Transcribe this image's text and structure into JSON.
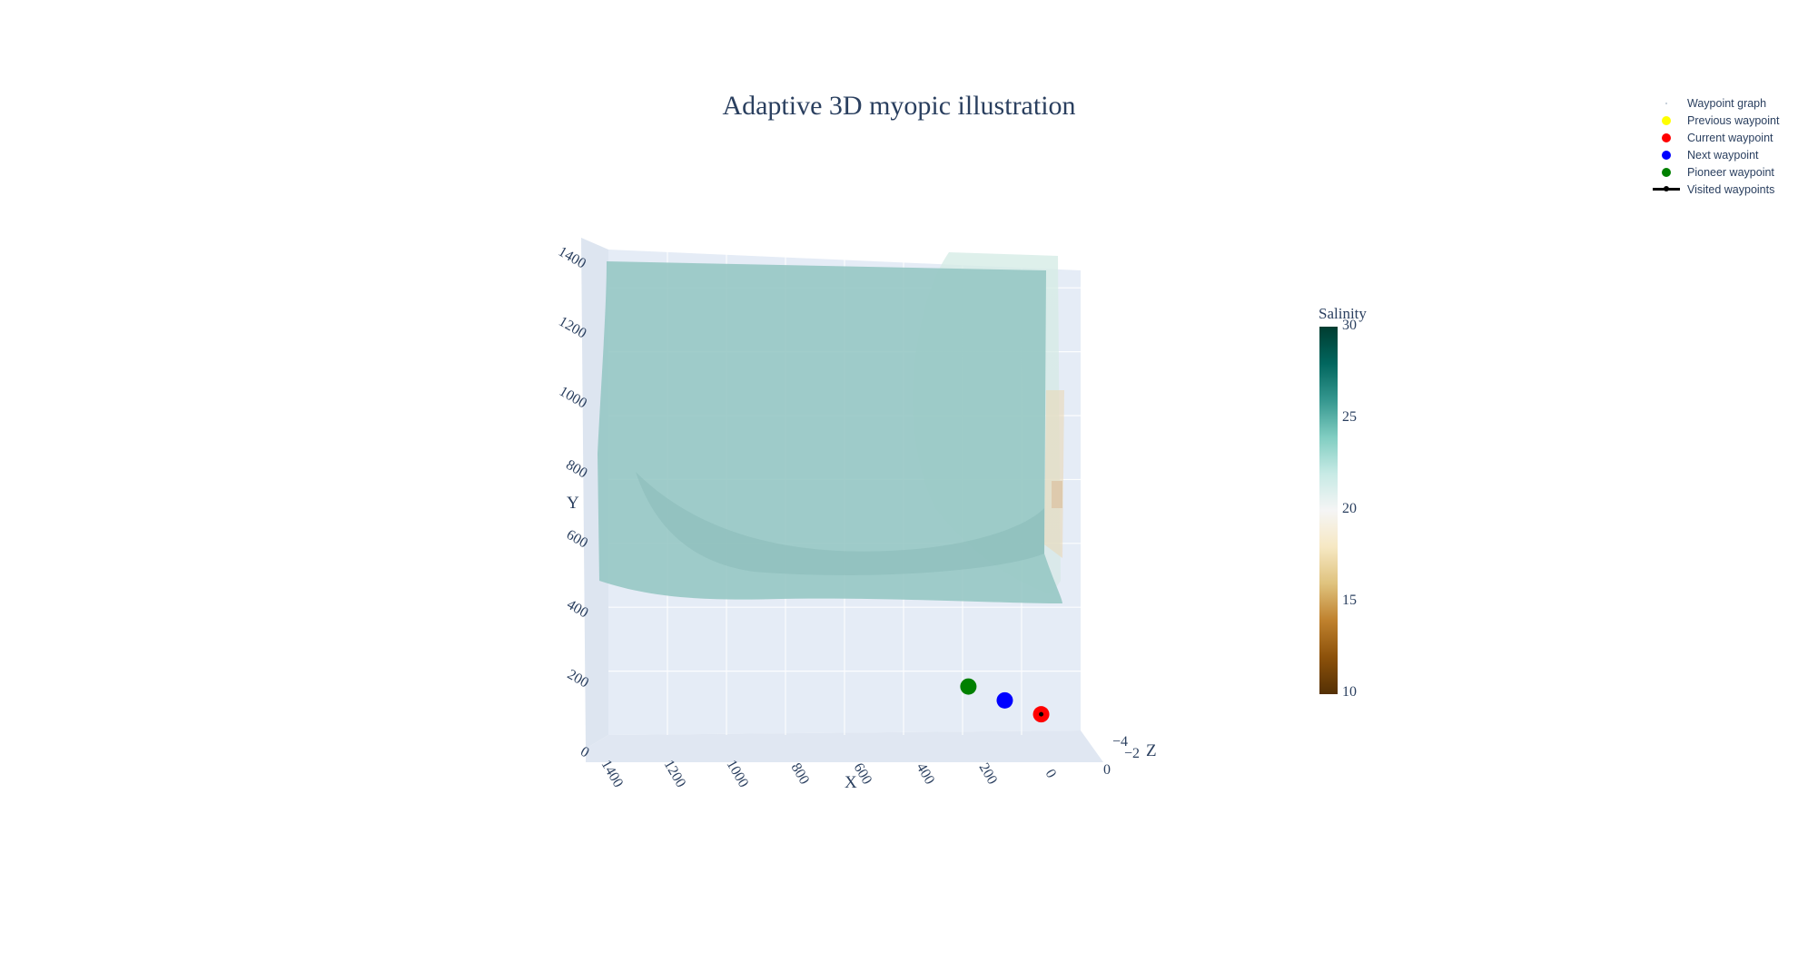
{
  "chart_data": {
    "type": "scatter3d+surface",
    "title": "Adaptive 3D myopic illustration",
    "axes": {
      "x": {
        "label": "X",
        "range": [
          0,
          1400
        ],
        "ticks": [
          "1400",
          "1200",
          "1000",
          "800",
          "600",
          "400",
          "200",
          "0"
        ]
      },
      "y": {
        "label": "Y",
        "range": [
          0,
          1400
        ],
        "ticks": [
          "0",
          "200",
          "400",
          "600",
          "800",
          "1000",
          "1200",
          "1400"
        ]
      },
      "z": {
        "label": "Z",
        "ticks": [
          "−4",
          "−2",
          "0"
        ]
      }
    },
    "colorbar": {
      "title": "Salinity",
      "range": [
        10,
        30
      ],
      "ticks": [
        "30",
        "25",
        "20",
        "15",
        "10"
      ],
      "colors": [
        "#543005",
        "#8c510a",
        "#bf812d",
        "#dfc27d",
        "#f6e8c3",
        "#f5f5f5",
        "#c7eae5",
        "#80cdc1",
        "#35978f",
        "#01665e",
        "#003c30"
      ]
    },
    "legend": [
      {
        "label": "Waypoint graph",
        "marker": "tiny-dot",
        "color": "#b8c4d0"
      },
      {
        "label": "Previous waypoint",
        "marker": "dot",
        "color": "#ffff00"
      },
      {
        "label": "Current waypoint",
        "marker": "dot",
        "color": "#ff0000"
      },
      {
        "label": "Next waypoint",
        "marker": "dot",
        "color": "#0000ff"
      },
      {
        "label": "Pioneer waypoint",
        "marker": "dot",
        "color": "#008000"
      },
      {
        "label": "Visited waypoints",
        "marker": "line",
        "color": "#000000"
      }
    ],
    "points": [
      {
        "name": "Pioneer waypoint",
        "x": 400,
        "y": 310,
        "color": "#008000"
      },
      {
        "name": "Next waypoint",
        "x": 280,
        "y": 270,
        "color": "#0000ff"
      },
      {
        "name": "Current waypoint",
        "x": 160,
        "y": 230,
        "color": "#ff0000"
      }
    ]
  }
}
